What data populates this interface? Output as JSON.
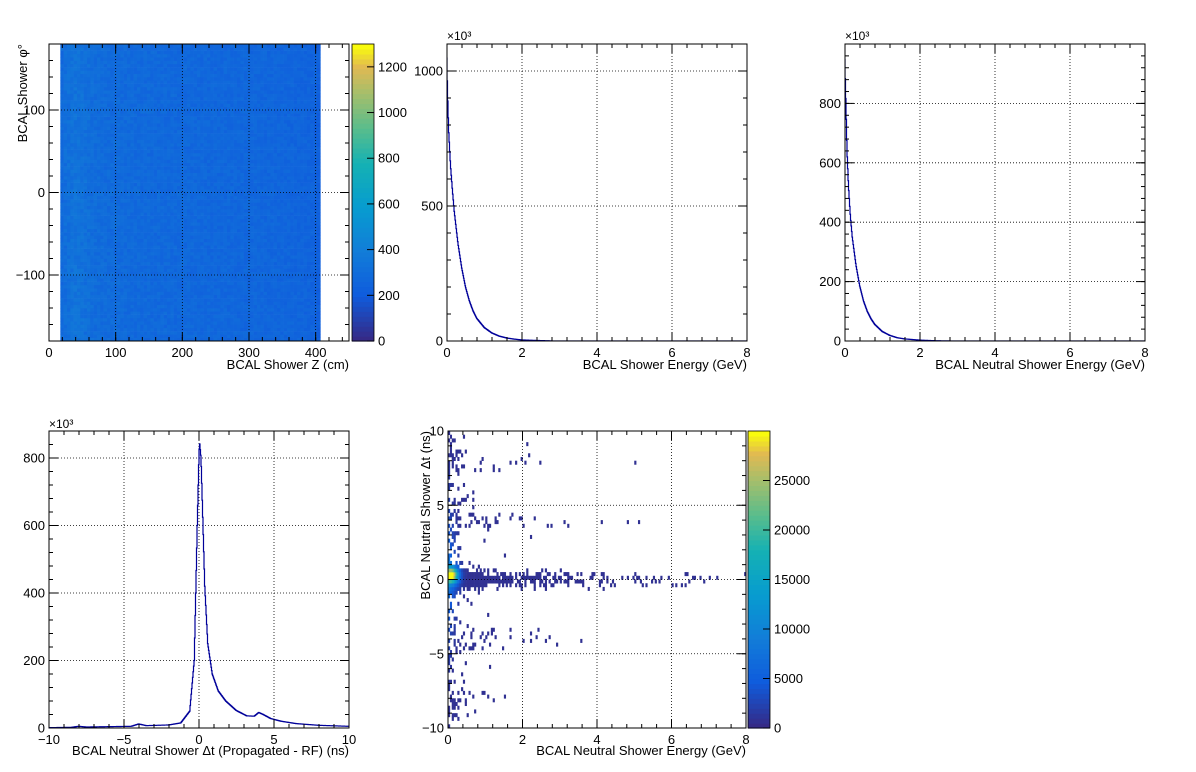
{
  "chart_data": [
    {
      "id": "p1",
      "type": "heatmap",
      "xlabel": "BCAL Shower Z (cm)",
      "ylabel": "BCAL Shower φ°",
      "xlim": [
        0,
        450
      ],
      "ylim": [
        -180,
        180
      ],
      "x_ticks": [
        0,
        100,
        200,
        300,
        400
      ],
      "y_ticks": [
        -100,
        0,
        100
      ],
      "x_tick_labels": [
        "0",
        "100",
        "200",
        "300",
        "400"
      ],
      "y_tick_labels": [
        "−100",
        "0",
        "100"
      ],
      "z_range": [
        0,
        1300
      ],
      "z_ticks": [
        0,
        200,
        400,
        600,
        800,
        1000,
        1200
      ],
      "z_tick_labels": [
        "0",
        "200",
        "400",
        "600",
        "800",
        "1000",
        "1200"
      ],
      "grid": true,
      "occupied_x_range": [
        17,
        407
      ],
      "profile_z_cm": [
        17,
        25,
        40,
        55,
        70,
        90,
        120,
        160,
        200,
        240,
        280,
        320,
        360,
        390,
        400,
        407
      ],
      "profile_counts": [
        260,
        300,
        330,
        310,
        290,
        280,
        275,
        270,
        265,
        262,
        258,
        255,
        250,
        240,
        230,
        210
      ]
    },
    {
      "id": "p2",
      "type": "line",
      "xlabel": "BCAL Shower Energy (GeV)",
      "ylabel": "",
      "multiplier_label": "×10³",
      "xlim": [
        0,
        8
      ],
      "ylim": [
        0,
        1100
      ],
      "x_ticks": [
        0,
        2,
        4,
        6,
        8
      ],
      "y_ticks": [
        0,
        500,
        1000
      ],
      "x_tick_labels": [
        "0",
        "2",
        "4",
        "6",
        "8"
      ],
      "y_tick_labels": [
        "0",
        "500",
        "1000"
      ],
      "grid": true,
      "x": [
        0.0,
        0.02,
        0.05,
        0.1,
        0.15,
        0.2,
        0.3,
        0.4,
        0.5,
        0.6,
        0.7,
        0.8,
        1.0,
        1.2,
        1.4,
        1.6,
        1.8,
        2.0,
        2.4,
        2.8
      ],
      "values": [
        1050,
        920,
        780,
        650,
        560,
        480,
        360,
        270,
        200,
        150,
        112,
        84,
        50,
        30,
        18,
        11,
        7,
        4,
        2,
        0.5
      ]
    },
    {
      "id": "p3",
      "type": "line",
      "xlabel": "BCAL Neutral Shower Energy (GeV)",
      "ylabel": "",
      "multiplier_label": "×10³",
      "xlim": [
        0,
        8
      ],
      "ylim": [
        0,
        1000
      ],
      "x_ticks": [
        0,
        2,
        4,
        6,
        8
      ],
      "y_ticks": [
        0,
        200,
        400,
        600,
        800
      ],
      "x_tick_labels": [
        "0",
        "2",
        "4",
        "6",
        "8"
      ],
      "y_tick_labels": [
        "0",
        "200",
        "400",
        "600",
        "800"
      ],
      "grid": true,
      "x": [
        0.0,
        0.03,
        0.06,
        0.1,
        0.15,
        0.2,
        0.3,
        0.4,
        0.5,
        0.6,
        0.7,
        0.8,
        1.0,
        1.2,
        1.4,
        1.6,
        2.0,
        2.4,
        2.8
      ],
      "values": [
        950,
        800,
        640,
        520,
        420,
        350,
        255,
        185,
        135,
        100,
        75,
        56,
        32,
        19,
        11,
        7,
        3,
        1,
        0.3
      ]
    },
    {
      "id": "p4",
      "type": "line",
      "xlabel": "BCAL Neutral Shower Δt (Propagated - RF) (ns)",
      "ylabel": "",
      "multiplier_label": "×10³",
      "xlim": [
        -10,
        10
      ],
      "ylim": [
        0,
        880
      ],
      "x_ticks": [
        -10,
        -5,
        0,
        5,
        10
      ],
      "y_ticks": [
        0,
        200,
        400,
        600,
        800
      ],
      "x_tick_labels": [
        "−10",
        "−5",
        "0",
        "5",
        "10"
      ],
      "y_tick_labels": [
        "0",
        "200",
        "400",
        "600",
        "800"
      ],
      "grid": true,
      "x": [
        -10,
        -8.5,
        -8,
        -7.5,
        -6,
        -4.5,
        -4,
        -3.5,
        -2,
        -1.2,
        -0.6,
        -0.3,
        -0.1,
        0.0,
        0.05,
        0.15,
        0.25,
        0.4,
        0.6,
        0.9,
        1.3,
        1.8,
        2.5,
        3.2,
        3.7,
        4.0,
        4.3,
        4.8,
        5.5,
        6.5,
        8,
        10
      ],
      "values": [
        1,
        2,
        5,
        3,
        4,
        5,
        12,
        7,
        9,
        15,
        50,
        200,
        600,
        780,
        850,
        800,
        650,
        420,
        250,
        160,
        110,
        80,
        52,
        36,
        35,
        46,
        40,
        28,
        20,
        13,
        8,
        5
      ]
    },
    {
      "id": "p5",
      "type": "heatmap",
      "xlabel": "BCAL Neutral Shower Energy (GeV)",
      "ylabel": "BCAL Neutral Shower Δt (ns)",
      "xlim": [
        0,
        8
      ],
      "ylim": [
        -10,
        10
      ],
      "x_ticks": [
        0,
        2,
        4,
        6,
        8
      ],
      "y_ticks": [
        -10,
        -5,
        0,
        5,
        10
      ],
      "x_tick_labels": [
        "0",
        "2",
        "4",
        "6",
        "8"
      ],
      "y_tick_labels": [
        "−10",
        "−5",
        "0",
        "5",
        "10"
      ],
      "z_range": [
        0,
        30000
      ],
      "z_ticks": [
        0,
        5000,
        10000,
        15000,
        20000,
        25000
      ],
      "z_tick_labels": [
        "0",
        "5000",
        "10000",
        "15000",
        "20000",
        "25000"
      ],
      "grid": true,
      "bands_ns": [
        -8,
        -4,
        0,
        4,
        8
      ],
      "band_extent_gev": [
        1.5,
        4.2,
        7.5,
        4.3,
        2.9
      ],
      "peak": {
        "energy_gev": 0.1,
        "dt_ns": 0.3,
        "counts": 28000
      }
    }
  ]
}
